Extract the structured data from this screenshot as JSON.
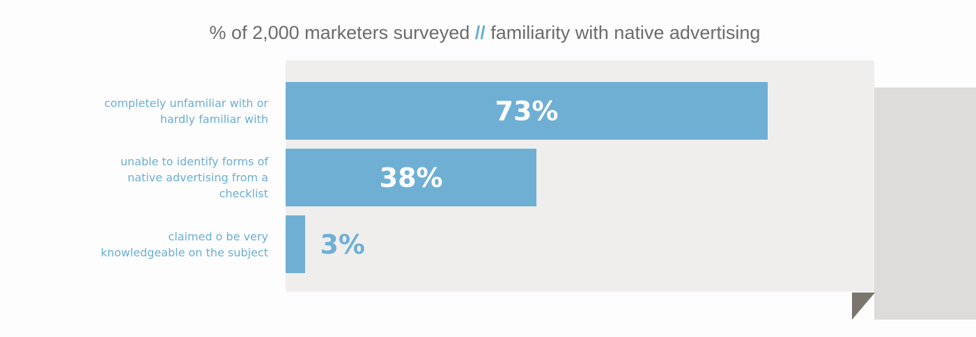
{
  "chart_data": {
    "type": "bar",
    "orientation": "horizontal",
    "title_parts": [
      "% of 2,000 marketers surveyed",
      "//",
      "familiarity with native advertising"
    ],
    "categories": [
      "completely unfamiliar with or hardly familiar with",
      "unable to identify forms of native advertising from a checklist",
      "claimed o be very knowledgeable on the subject"
    ],
    "values": [
      73,
      38,
      3
    ],
    "value_labels": [
      "73%",
      "38%",
      "3%"
    ],
    "color": "#6fafd4"
  }
}
